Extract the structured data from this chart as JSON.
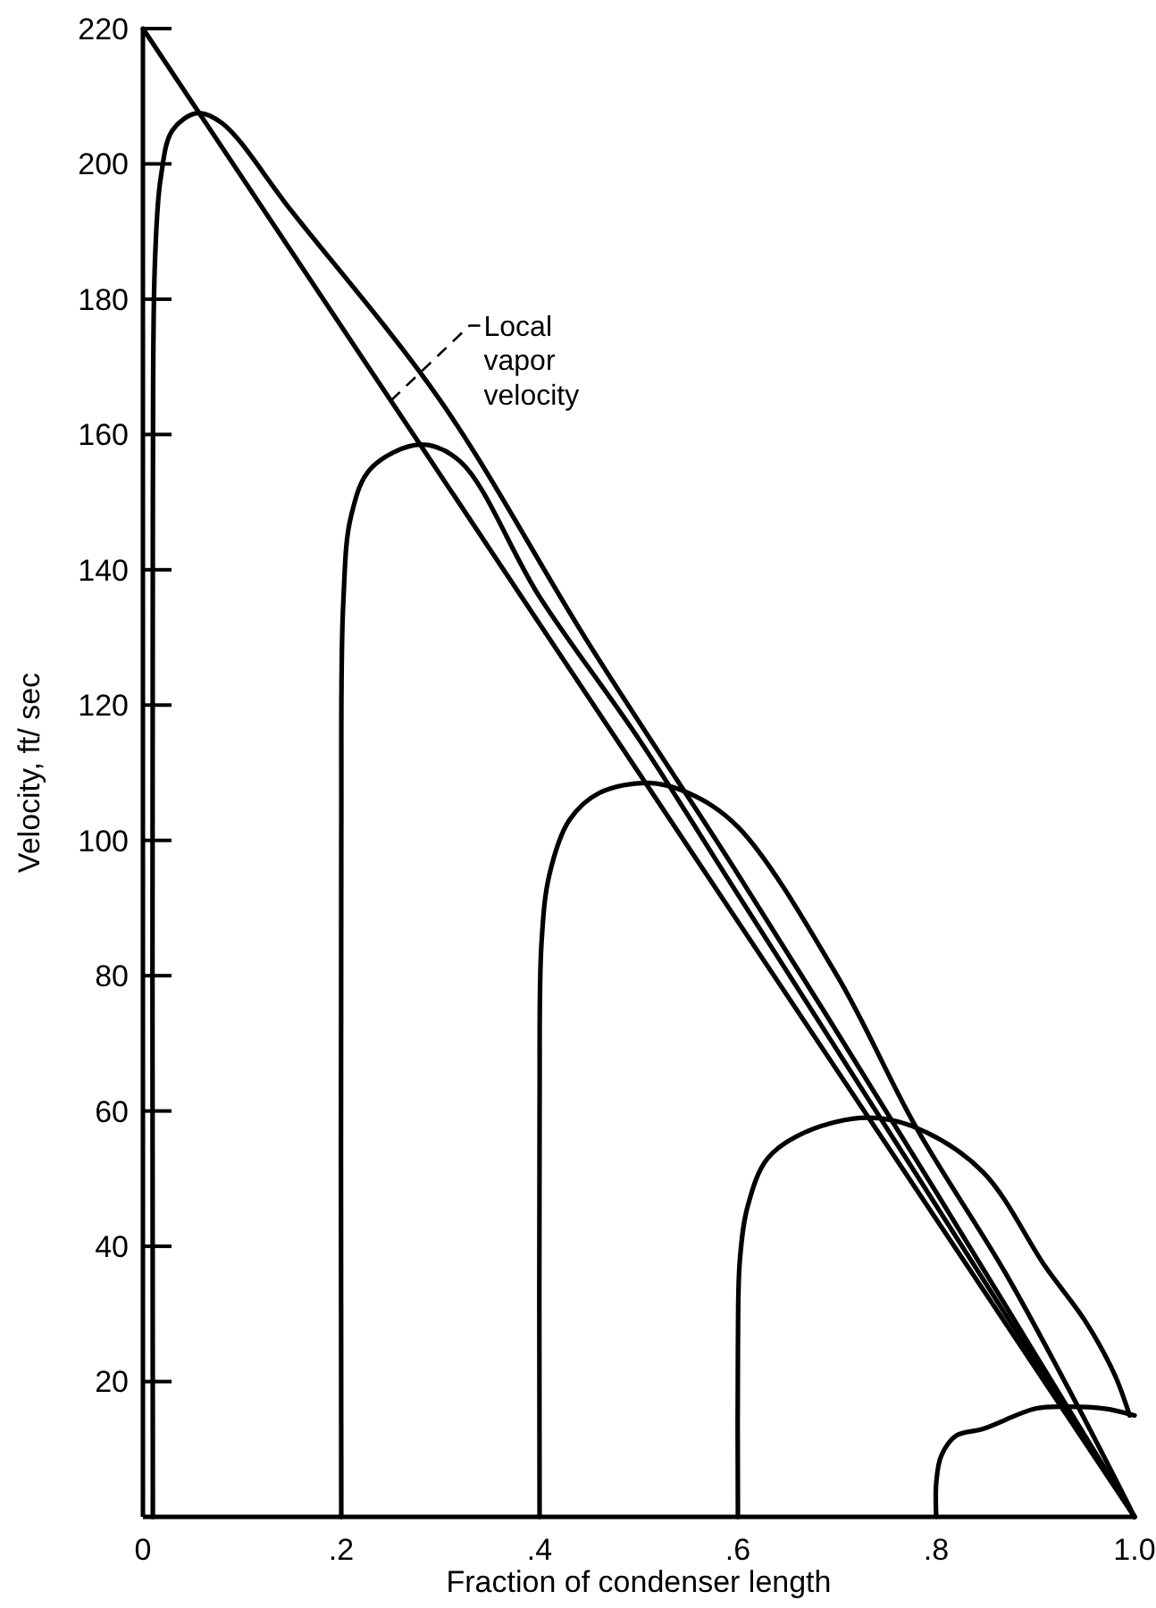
{
  "chart_data": {
    "type": "line",
    "xlabel": "Fraction of condenser length",
    "ylabel": "Velocity, ft/ sec",
    "xlim": [
      0,
      1
    ],
    "ylim": [
      0,
      220
    ],
    "xticks": [
      {
        "value": 0,
        "label": "0"
      },
      {
        "value": 0.2,
        "label": ".2"
      },
      {
        "value": 0.4,
        "label": ".4"
      },
      {
        "value": 0.6,
        "label": ".6"
      },
      {
        "value": 0.8,
        "label": ".8"
      },
      {
        "value": 1,
        "label": "1.0"
      }
    ],
    "yticks": [
      20,
      40,
      60,
      80,
      100,
      120,
      140,
      160,
      180,
      200,
      220
    ],
    "grid": false,
    "marker": "none",
    "line_style": "solid",
    "annotations": [
      {
        "text": "Local vapor velocity",
        "x": 0.25,
        "y": 165
      }
    ],
    "series": [
      {
        "color": "#000000",
        "x": [
          0,
          1
        ],
        "values": [
          220,
          0
        ]
      },
      {
        "color": "#000000",
        "x": [
          0.01,
          0.01,
          0.012,
          0.018,
          0.03,
          0.055,
          0.08,
          0.15,
          0.3,
          0.45,
          0.6,
          0.8,
          0.9,
          1
        ],
        "values": [
          0,
          150,
          185,
          198,
          205,
          207.5,
          206,
          193,
          165,
          129,
          95,
          48,
          24,
          0
        ]
      },
      {
        "color": "#000000",
        "x": [
          0.2,
          0.2,
          0.202,
          0.21,
          0.23,
          0.28,
          0.32,
          0.4,
          0.5,
          0.6,
          0.8,
          1
        ],
        "values": [
          0,
          100,
          135,
          148,
          155,
          158.5,
          156,
          136,
          115,
          92,
          46,
          0
        ]
      },
      {
        "color": "#000000",
        "x": [
          0.4,
          0.4,
          0.402,
          0.41,
          0.43,
          0.46,
          0.51,
          0.55,
          0.6,
          0.7,
          0.78,
          0.87,
          0.944,
          1
        ],
        "values": [
          0,
          60,
          85,
          95,
          103,
          107,
          108.5,
          107,
          102,
          80,
          57.5,
          36,
          16,
          0
        ]
      },
      {
        "color": "#000000",
        "x": [
          0.6,
          0.6,
          0.602,
          0.61,
          0.63,
          0.67,
          0.73,
          0.78,
          0.847,
          0.91,
          0.95,
          0.98,
          0.995
        ],
        "values": [
          0,
          25,
          38,
          46,
          53,
          57,
          59,
          57.5,
          51,
          37,
          29,
          21,
          15
        ]
      },
      {
        "color": "#000000",
        "x": [
          0.8,
          0.8,
          0.805,
          0.82,
          0.847,
          0.9,
          0.93,
          0.97,
          1
        ],
        "values": [
          0,
          5,
          9,
          12,
          13,
          16,
          16.3,
          16,
          15
        ]
      }
    ]
  }
}
